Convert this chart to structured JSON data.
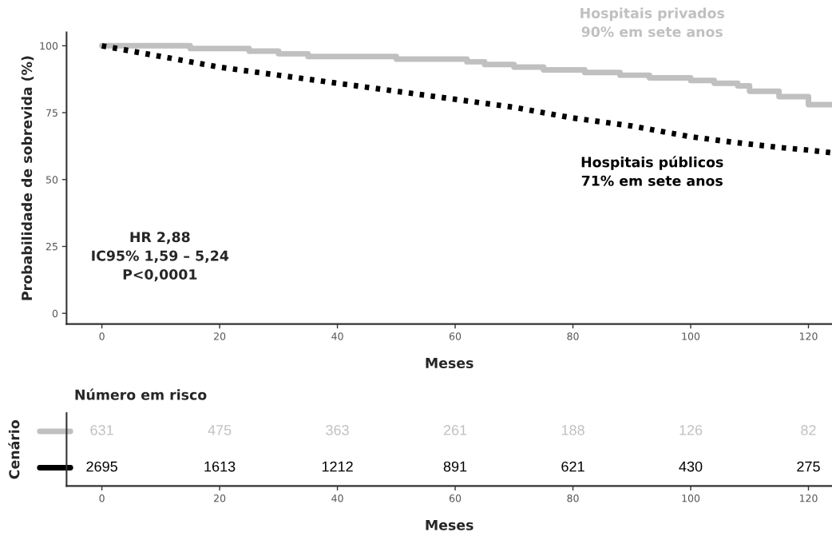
{
  "chart_data": [
    {
      "type": "step",
      "xlabel": "Meses",
      "ylabel": "Probabilidade de sobrevida (%)",
      "xlim": [
        -6,
        124
      ],
      "ylim": [
        -4,
        105
      ],
      "xticks": [
        0,
        20,
        40,
        60,
        80,
        100,
        120
      ],
      "yticks": [
        0,
        25,
        50,
        75,
        100
      ],
      "series": [
        {
          "name": "Hospitais privados\n90% em sete anos",
          "color": "#c0c0c0",
          "line_style": "solid",
          "x": [
            0,
            10,
            15,
            20,
            25,
            30,
            35,
            45,
            50,
            58,
            62,
            65,
            70,
            75,
            82,
            88,
            93,
            100,
            104,
            108,
            110,
            115,
            120,
            124
          ],
          "values": [
            100,
            100,
            99,
            99,
            98,
            97,
            96,
            96,
            95,
            95,
            94,
            93,
            92,
            91,
            90,
            89,
            88,
            87,
            86,
            85,
            83,
            81,
            78,
            78
          ]
        },
        {
          "name": "Hospitais públicos\n71% em sete anos",
          "type": "line",
          "color": "#000000",
          "line_style": "dotted",
          "x": [
            0,
            10,
            20,
            30,
            40,
            50,
            60,
            70,
            80,
            90,
            100,
            107,
            115,
            120,
            124
          ],
          "values": [
            100,
            96,
            92,
            89,
            86,
            83,
            80,
            77,
            73,
            70,
            66,
            64,
            62,
            61,
            60
          ]
        }
      ],
      "annotations": [
        "HR 2,88\nIC95% 1,59 – 5,24\nP<0,0001"
      ],
      "grid": false
    },
    {
      "type": "heatmap",
      "title": "Número em risco",
      "xlabel": "Meses",
      "ylabel": "Cenário",
      "categories": [
        "0",
        "20",
        "40",
        "60",
        "80",
        "100",
        "120"
      ],
      "y_categories": [
        null,
        null
      ],
      "colors": [
        "#c0c0c0",
        "#000000"
      ],
      "cells": [
        [
          631,
          475,
          363,
          261,
          188,
          126,
          82
        ],
        [
          2695,
          1613,
          1212,
          891,
          621,
          430,
          275
        ]
      ],
      "data_labels": true
    }
  ]
}
